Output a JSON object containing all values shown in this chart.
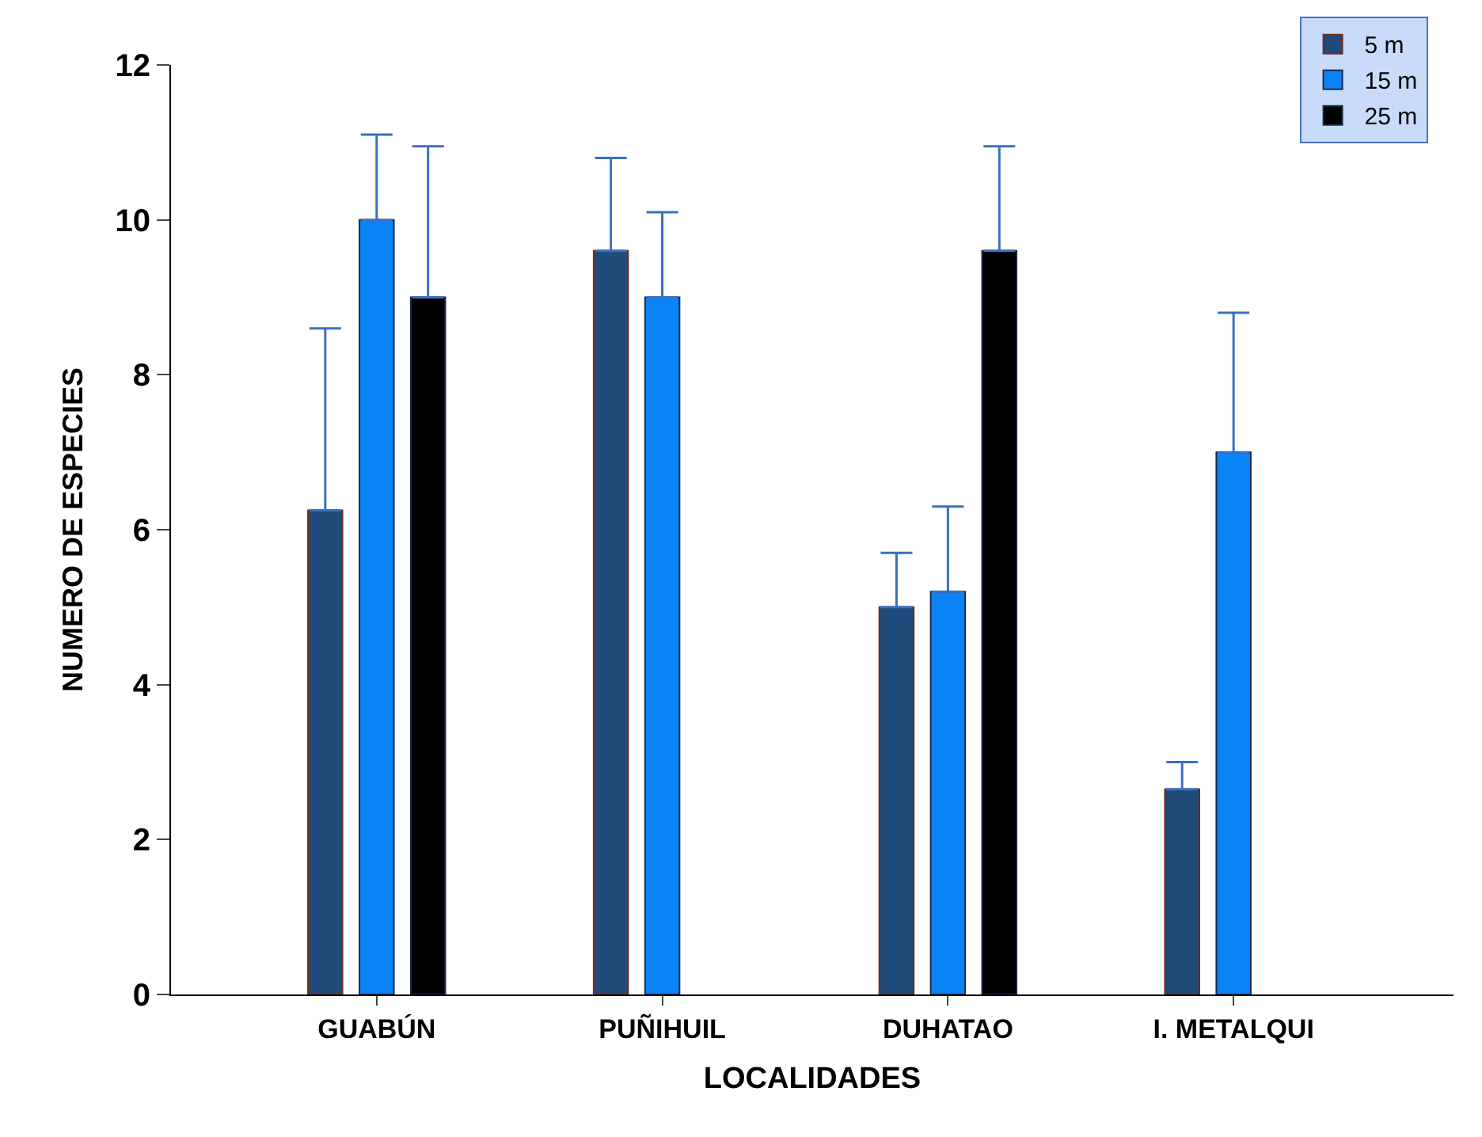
{
  "chart_data": {
    "type": "bar",
    "xlabel": "LOCALIDADES",
    "ylabel": "NUMERO DE ESPECIES",
    "categories": [
      "GUABÚN",
      "PUÑIHUIL",
      "DUHATAO",
      "I. METALQUI"
    ],
    "series": [
      {
        "name": "5 m",
        "color": "#1f4a7a",
        "values": [
          6.25,
          9.6,
          5.0,
          2.65
        ],
        "errors": [
          [
            6.25,
            8.6
          ],
          [
            9.6,
            10.8
          ],
          [
            5.0,
            5.7
          ],
          [
            2.65,
            3.0
          ]
        ]
      },
      {
        "name": "15 m",
        "color": "#0a84f5",
        "values": [
          10.0,
          9.0,
          5.2,
          7.0
        ],
        "errors": [
          [
            10.0,
            11.1
          ],
          [
            9.0,
            10.1
          ],
          [
            5.2,
            6.3
          ],
          [
            7.0,
            8.8
          ]
        ]
      },
      {
        "name": "25 m",
        "color": "#000000",
        "values": [
          9.0,
          null,
          9.6,
          null
        ],
        "errors": [
          [
            9.0,
            10.95
          ],
          null,
          [
            9.6,
            10.95
          ],
          null
        ]
      }
    ],
    "ylim": [
      0,
      12
    ],
    "yticks": [
      0,
      2,
      4,
      6,
      8,
      10,
      12
    ],
    "legend": "top right"
  }
}
